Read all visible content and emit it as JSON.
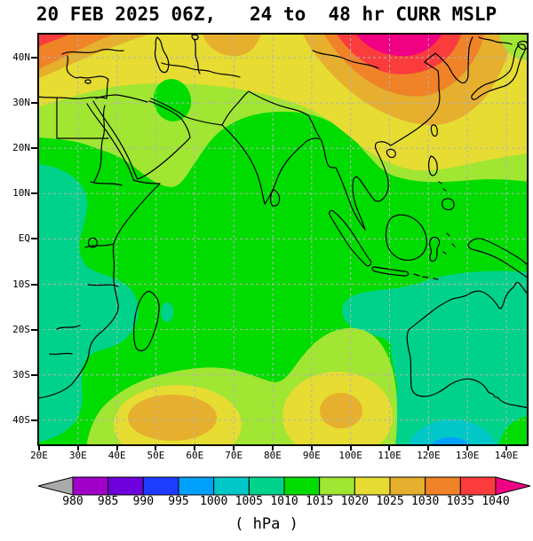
{
  "title": "20 FEB 2025 06Z,   24 to  48 hr CURR MSLP",
  "axes": {
    "x_tick_labels": [
      "20E",
      "30E",
      "40E",
      "50E",
      "60E",
      "70E",
      "80E",
      "90E",
      "100E",
      "110E",
      "120E",
      "130E",
      "140E"
    ],
    "y_tick_labels": [
      "40N",
      "30N",
      "20N",
      "10N",
      "EQ",
      "10S",
      "20S",
      "30S",
      "40S"
    ]
  },
  "colorbar": {
    "tick_labels": [
      "980",
      "985",
      "990",
      "995",
      "1000",
      "1005",
      "1010",
      "1015",
      "1020",
      "1025",
      "1030",
      "1035",
      "1040"
    ],
    "segment_colors": [
      "#a000c8",
      "#6e00dc",
      "#1e3cff",
      "#00a0ff",
      "#00c8c8",
      "#00d28c",
      "#00dc00",
      "#a0e632",
      "#e6dc32",
      "#e6af2d",
      "#f08228",
      "#fa3c3c"
    ],
    "left_arrow_color": "#aaaaaa",
    "right_arrow_color": "#f00082",
    "units_label": "( hPa )"
  },
  "chart_data": {
    "type": "heatmap",
    "title": "20 FEB 2025 06Z,   24 to  48 hr CURR MSLP",
    "field": "Mean sea level pressure, 24-48 hr forecast",
    "units": "hPa",
    "x_ticks": [
      "20E",
      "30E",
      "40E",
      "50E",
      "60E",
      "70E",
      "80E",
      "90E",
      "100E",
      "110E",
      "120E",
      "130E",
      "140E"
    ],
    "y_ticks": [
      "40N",
      "30N",
      "20N",
      "10N",
      "EQ",
      "10S",
      "20S",
      "30S",
      "40S"
    ],
    "levels": [
      980,
      985,
      990,
      995,
      1000,
      1005,
      1010,
      1015,
      1020,
      1025,
      1030,
      1035,
      1040
    ],
    "palette": [
      "#a000c8",
      "#6e00dc",
      "#1e3cff",
      "#00a0ff",
      "#00c8c8",
      "#00d28c",
      "#00dc00",
      "#a0e632",
      "#e6dc32",
      "#e6af2d",
      "#f08228",
      "#fa3c3c",
      "#f00082"
    ],
    "grid": true,
    "legend_position": "bottom",
    "background_band_hPa": "1010-1015",
    "features": [
      {
        "feature": "intense high, >1040 hPa core",
        "location": "top of map ~45N, 95-110E (East Asia), ringed by 1035-1040 and 1030-1035 bands"
      },
      {
        "feature": "high pressure band 1020-1040 hPa",
        "location": "entire northern edge 20E-145E, 30-45N, orange/red over Turkey-Caucasus and China-Korea"
      },
      {
        "feature": "subtropical high, 1025-1030 hPa core",
        "location": "~37S, 48-62E, southwest Indian Ocean, 1020-1025 ring"
      },
      {
        "feature": "subtropical high, 1025-1030 hPa core",
        "location": "~36S, 92-98E, southeast Indian Ocean, 1020-1025 ring"
      },
      {
        "feature": "low, 990-995 hPa core",
        "location": "~46S, 120-128E, south of Australia, rings of 995-1000 and 1000-1005"
      },
      {
        "feature": "1005-1010 hPa belt",
        "location": "equatorial East Africa, Mozambique Channel coast, seas south of Indonesia, most of Australia"
      },
      {
        "feature": "1015-1020 hPa tongue",
        "location": "southern Arabian peninsula / NW Arabian Sea"
      },
      {
        "feature": "1010-1015 hPa background",
        "location": "tropical Indian Ocean, India, Bay of Bengal, Indonesia"
      }
    ]
  }
}
